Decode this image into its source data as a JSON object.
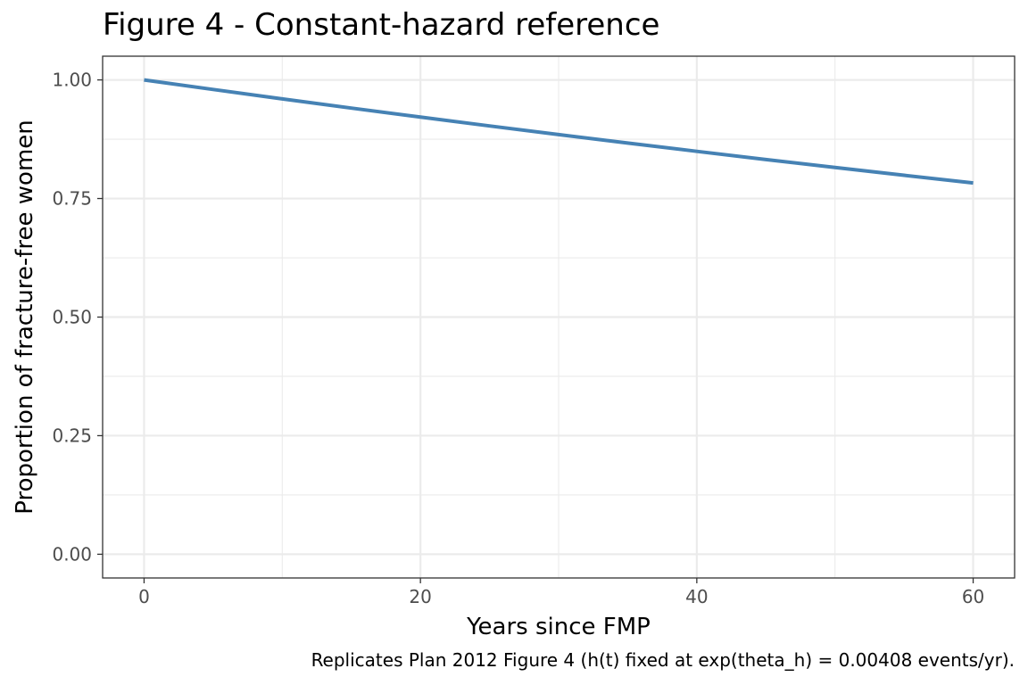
{
  "chart_data": {
    "type": "line",
    "title": "Figure 4 - Constant-hazard reference",
    "xlabel": "Years since FMP",
    "ylabel": "Proportion of fracture-free women",
    "caption": "Replicates Plan 2012 Figure 4 (h(t) fixed at exp(theta_h) = 0.00408 events/yr).",
    "xlim": [
      -3,
      63
    ],
    "ylim": [
      -0.05,
      1.05
    ],
    "x_ticks": [
      0,
      20,
      40,
      60
    ],
    "x_tick_labels": [
      "0",
      "20",
      "40",
      "60"
    ],
    "y_ticks": [
      0,
      0.25,
      0.5,
      0.75,
      1
    ],
    "y_tick_labels": [
      "0.00",
      "0.25",
      "0.50",
      "0.75",
      "1.00"
    ],
    "grid": true,
    "series": [
      {
        "color": "#4682B4",
        "x": [
          0,
          5,
          10,
          15,
          20,
          25,
          30,
          35,
          40,
          45,
          50,
          55,
          60
        ],
        "y": [
          1.0,
          0.9798,
          0.96,
          0.9406,
          0.9216,
          0.903,
          0.8847,
          0.8669,
          0.8494,
          0.8322,
          0.8154,
          0.7989,
          0.7828
        ]
      }
    ]
  }
}
